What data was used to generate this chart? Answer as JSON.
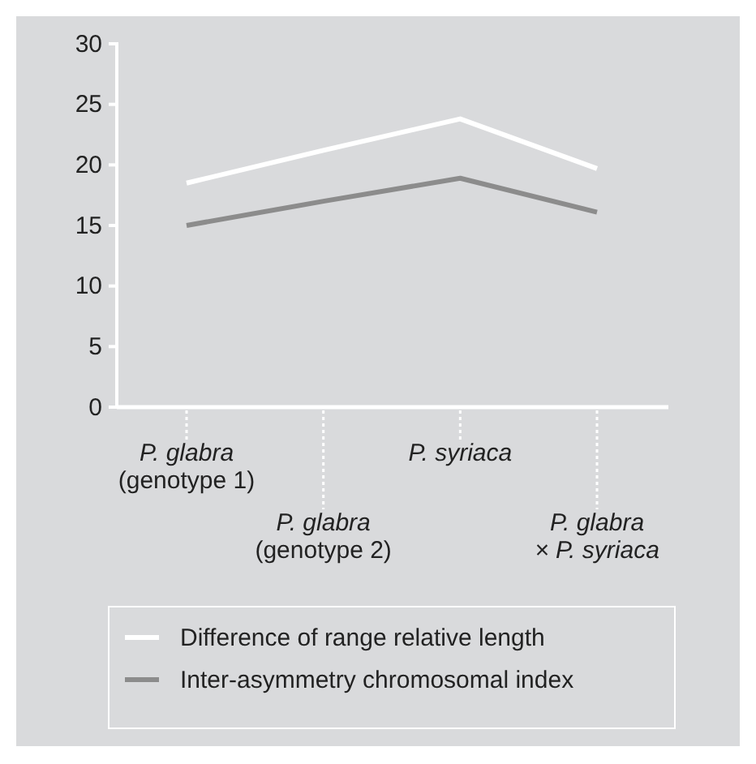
{
  "chart_data": {
    "type": "line",
    "categories": [
      "P. glabra\n(genotype 1)",
      "P. glabra\n(genotype 2)",
      "P. syriaca",
      "P. glabra\n× P. syriaca"
    ],
    "series": [
      {
        "name": "Difference of range relative length",
        "color": "#ffffff",
        "values": [
          18.5,
          21.2,
          23.8,
          19.7
        ]
      },
      {
        "name": "Inter-asymmetry chromosomal index",
        "color": "#8c8c8c",
        "values": [
          15.0,
          17.0,
          18.9,
          16.1
        ]
      }
    ],
    "ylim": [
      0,
      30
    ],
    "yticks": [
      0,
      5,
      10,
      15,
      20,
      25,
      30
    ],
    "grid": false,
    "legend": "bottom",
    "marker": "none",
    "line_style": "solid"
  }
}
